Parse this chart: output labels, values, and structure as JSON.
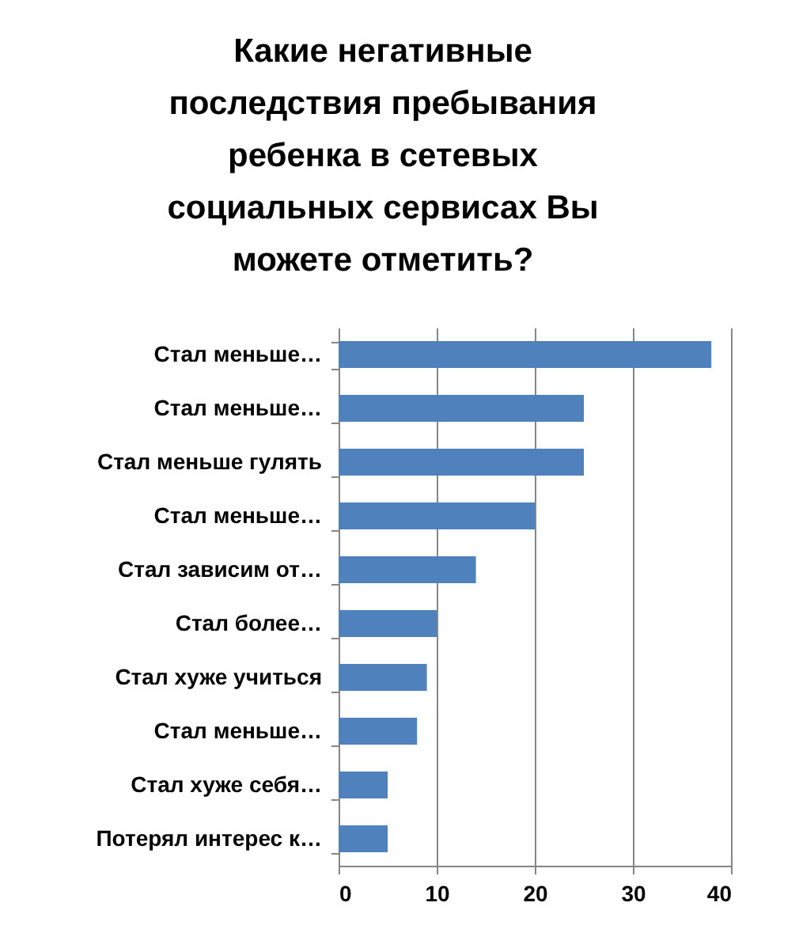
{
  "chart_data": {
    "type": "bar",
    "orientation": "horizontal",
    "title": "Какие негативные последствия пребывания ребенка в сетевых социальных сервисах Вы можете отметить?",
    "categories": [
      "Стал меньше…",
      "Стал меньше…",
      "Стал меньше гулять",
      "Стал меньше…",
      "Стал зависим от…",
      "Стал более…",
      "Стал хуже учиться",
      "Стал меньше…",
      "Стал хуже себя…",
      "Потерял интерес к…"
    ],
    "values": [
      38,
      25,
      25,
      20,
      14,
      10,
      9,
      8,
      5,
      5
    ],
    "color": "#4f81bd",
    "xlim": [
      0,
      40
    ],
    "xticks": [
      0,
      10,
      20,
      30,
      40
    ],
    "grid": "x"
  }
}
